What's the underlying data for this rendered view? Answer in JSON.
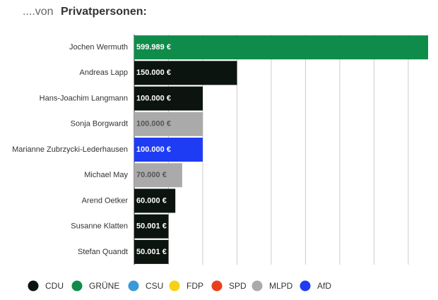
{
  "chart_data": {
    "type": "bar",
    "orientation": "horizontal",
    "title_parts": [
      "....von",
      "Privatpersonen:"
    ],
    "categories": [
      "Jochen Wermuth",
      "Andreas Lapp",
      "Hans-Joachim Langmann",
      "Sonja Borgwardt",
      "Marianne Zubrzycki-Lederhausen",
      "Michael May",
      "Arend Oetker",
      "Susanne Klatten",
      "Stefan Quandt"
    ],
    "values": [
      599989,
      150000,
      100000,
      100000,
      100000,
      70000,
      60000,
      50001,
      50001
    ],
    "value_labels": [
      "599.989 €",
      "150.000 €",
      "100.000 €",
      "100.000 €",
      "100.000 €",
      "70.000 €",
      "60.000 €",
      "50.001 €",
      "50.001 €"
    ],
    "colors": [
      "#0f8c4a",
      "#0b140f",
      "#0b140f",
      "#aaaaaa",
      "#1f3cf5",
      "#aaaaaa",
      "#0b140f",
      "#0b140f",
      "#0b140f"
    ],
    "xlim": [
      0,
      430000
    ],
    "xticks": [
      0,
      50000,
      100000,
      150000,
      200000,
      250000,
      300000,
      350000,
      400000
    ],
    "grid": true,
    "legend": [
      {
        "name": "CDU",
        "color": "#0b140f"
      },
      {
        "name": "GRÜNE",
        "color": "#0f8c4a"
      },
      {
        "name": "CSU",
        "color": "#3a9ad9"
      },
      {
        "name": "FDP",
        "color": "#f7d117"
      },
      {
        "name": "SPD",
        "color": "#e8401c"
      },
      {
        "name": "MLPD",
        "color": "#aaaaaa"
      },
      {
        "name": "AfD",
        "color": "#1f3cf5"
      }
    ]
  }
}
